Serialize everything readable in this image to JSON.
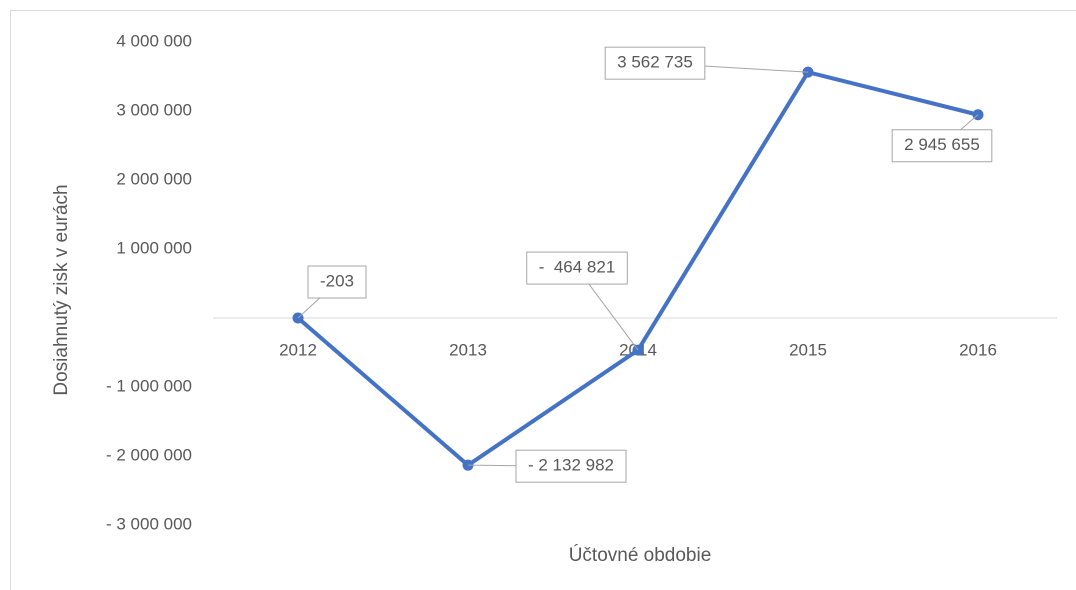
{
  "chart_data": {
    "type": "line",
    "x_label": "Účtovné obdobie",
    "y_label": "Dosiahnutý zisk v eurách",
    "categories": [
      "2012",
      "2013",
      "2014",
      "2015",
      "2016"
    ],
    "series": [
      {
        "name": "Dosiahnutý zisk",
        "color": "#4472c4",
        "values": [
          -203,
          -2132982,
          -464821,
          3562735,
          2945655
        ],
        "value_labels": [
          "-203",
          "- 2 132 982",
          "-  464 821",
          "3 562 735",
          "2 945 655"
        ]
      }
    ],
    "ylim": [
      -3000000,
      4000000
    ],
    "yticks": [
      {
        "value": 4000000,
        "label": "4 000 000"
      },
      {
        "value": 3000000,
        "label": "3 000 000"
      },
      {
        "value": 2000000,
        "label": "2 000 000"
      },
      {
        "value": 1000000,
        "label": "1 000 000"
      },
      {
        "value": -1000000,
        "label": "- 1 000 000"
      },
      {
        "value": -2000000,
        "label": "- 2 000 000"
      },
      {
        "value": -3000000,
        "label": "- 3 000 000"
      }
    ],
    "grid": false
  }
}
